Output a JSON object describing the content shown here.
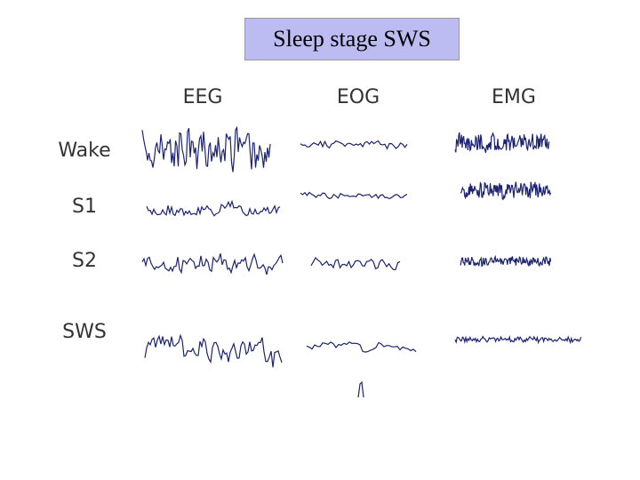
{
  "title": "Sleep stage SWS",
  "columns": [
    "EEG",
    "EOG",
    "EMG"
  ],
  "rows": [
    "Wake",
    "S1",
    "S2",
    "SWS"
  ]
}
